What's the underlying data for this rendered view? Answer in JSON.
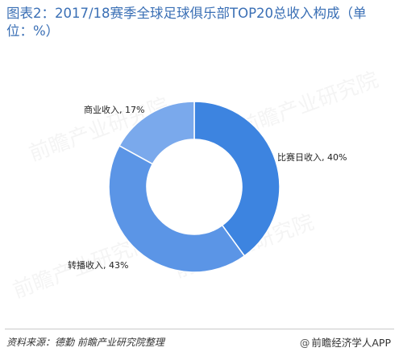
{
  "title": "图表2：2017/18赛季全球足球俱乐部TOP20总收入构成（单位：%）",
  "chart_data": {
    "type": "pie",
    "donut": true,
    "title": "图表2：2017/18赛季全球足球俱乐部TOP20总收入构成（单位：%）",
    "slices": [
      {
        "name": "比赛日收入",
        "value": 40,
        "label": "比赛日收入, 40%",
        "color": "#3d84e0"
      },
      {
        "name": "转播收入",
        "value": 43,
        "label": "转播收入, 43%",
        "color": "#5b95e6"
      },
      {
        "name": "商业收入",
        "value": 17,
        "label": "商业收入, 17%",
        "color": "#7aa9ec"
      }
    ],
    "legend": "none"
  },
  "watermark": "前瞻产业研究院",
  "footer": {
    "source": "资料来源：德勤 前瞻产业研究院整理",
    "brand_symbol": "@",
    "brand": "前瞻经济学人APP"
  }
}
